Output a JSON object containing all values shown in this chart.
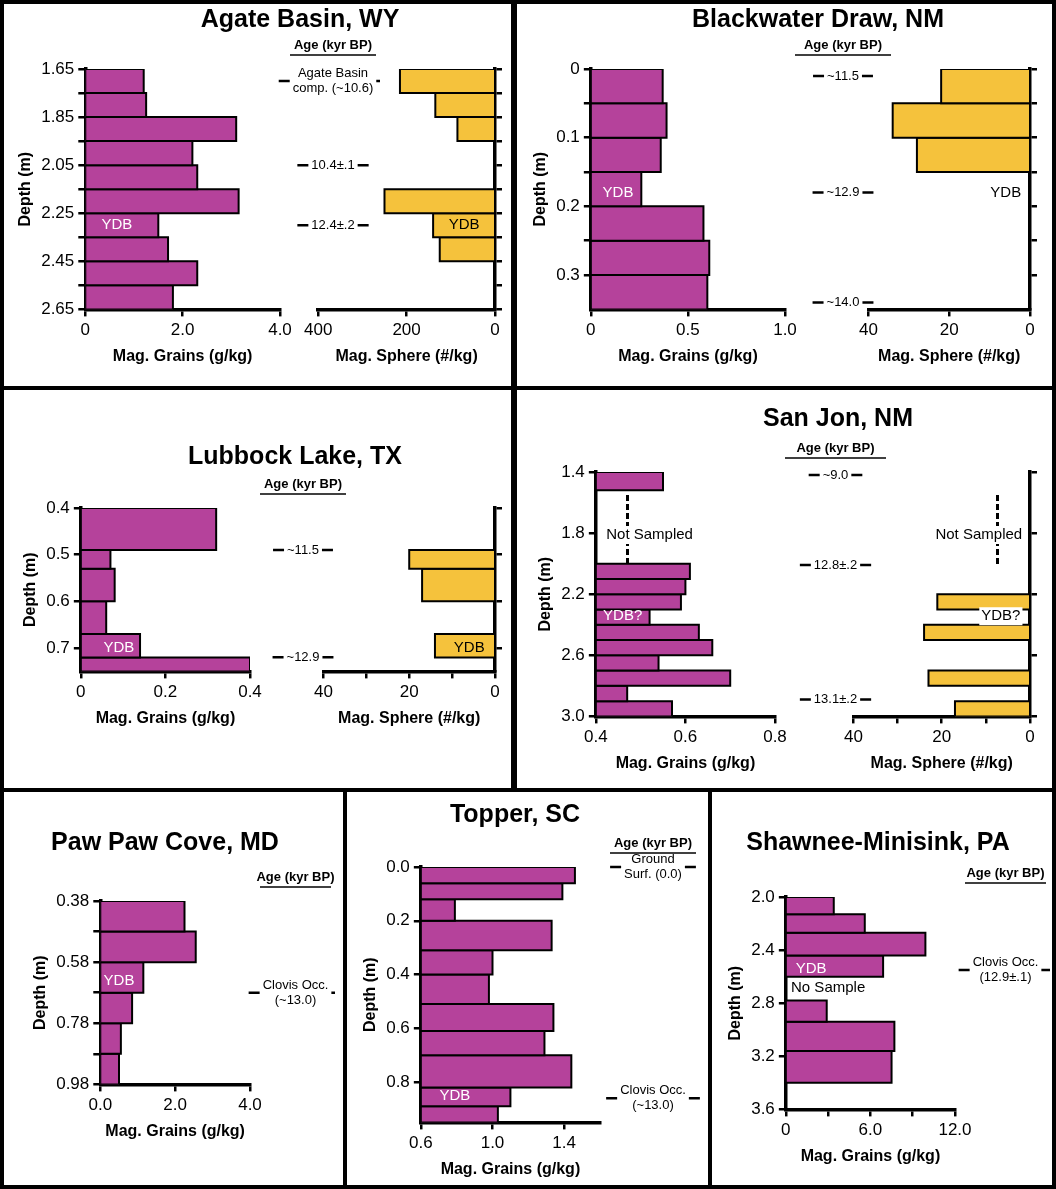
{
  "chart_data": [
    {
      "type": "histogram",
      "orientation": "horizontal",
      "title": "Agate Basin, WY",
      "xlabel": "Mag. Grains (g/kg)",
      "ylabel": "Depth (m)",
      "color": "#b5429b",
      "bins": [
        1.65,
        1.75,
        1.85,
        1.95,
        2.05,
        2.15,
        2.25,
        2.35,
        2.45,
        2.55,
        2.65
      ],
      "values": [
        1.2,
        1.25,
        3.1,
        2.2,
        2.3,
        3.15,
        1.5,
        1.7,
        2.3,
        1.8
      ],
      "xlim": [
        0,
        4
      ],
      "xticks": [
        0,
        {
          "value": 2,
          "label": "2.0"
        },
        {
          "value": 4,
          "label": "4.0"
        }
      ],
      "ylim": [
        2.65,
        1.65
      ],
      "yticks": [
        1.65,
        {
          "value": 1.75,
          "label": null
        },
        1.85,
        {
          "value": 1.95,
          "label": null
        },
        2.05,
        {
          "value": 2.15,
          "label": null
        },
        2.25,
        {
          "value": 2.35,
          "label": null
        },
        2.45,
        {
          "value": 2.55,
          "label": null
        },
        2.65
      ],
      "annotations": [
        "Age (kyr BP)",
        "Agate Basin comp. (~10.6)",
        "10.4±.1",
        "12.4±.2",
        "YDB"
      ]
    },
    {
      "type": "histogram",
      "orientation": "horizontal",
      "xlabel": "Mag. Sphere (#/kg)",
      "color": "#f5c23c",
      "bins": [
        1.65,
        1.75,
        1.85,
        1.95,
        2.15,
        2.25,
        2.35,
        2.45
      ],
      "values": [
        215,
        135,
        85,
        null,
        250,
        140,
        125
      ],
      "xlim": [
        400,
        0
      ],
      "xticks": [
        400,
        200,
        0
      ],
      "ylim": [
        2.65,
        1.65
      ],
      "yticks": [
        1.65,
        1.75,
        1.85,
        1.95,
        2.05,
        2.15,
        2.25,
        2.35,
        2.45,
        2.55,
        2.65
      ],
      "tick_labels": "x",
      "annotations": [
        "YDB"
      ]
    },
    {
      "type": "histogram",
      "orientation": "horizontal",
      "title": "Blackwater Draw, NM",
      "xlabel": "Mag. Grains (g/kg)",
      "ylabel": "Depth (m)",
      "color": "#b5429b",
      "bins": [
        0,
        0.05,
        0.1,
        0.15,
        0.2,
        0.25,
        0.3,
        0.35
      ],
      "values": [
        0.37,
        0.39,
        0.36,
        0.26,
        0.58,
        0.61,
        0.6
      ],
      "xlim": [
        0,
        1
      ],
      "xticks": [
        0,
        0.5,
        {
          "value": 1,
          "label": "1.0"
        }
      ],
      "ylim": [
        0.35,
        0
      ],
      "yticks": [
        0,
        {
          "value": 0.05,
          "label": null
        },
        0.1,
        {
          "value": 0.15,
          "label": null
        },
        0.2,
        {
          "value": 0.25,
          "label": null
        },
        0.3
      ],
      "annotations": [
        "Age (kyr BP)",
        "~11.5",
        "~12.9",
        "~14.0",
        "YDB"
      ]
    },
    {
      "type": "histogram",
      "orientation": "horizontal",
      "xlabel": "Mag. Sphere (#/kg)",
      "color": "#f5c23c",
      "bins": [
        0,
        0.05,
        0.1,
        0.15
      ],
      "values": [
        22,
        34,
        28
      ],
      "xlim": [
        40,
        0
      ],
      "xticks": [
        40,
        20,
        0
      ],
      "ylim": [
        0.35,
        0
      ],
      "yticks": [
        0,
        0.05,
        0.1,
        0.15,
        0.2,
        0.25,
        0.3
      ],
      "tick_labels": "x",
      "annotations": [
        "YDB"
      ]
    },
    {
      "type": "histogram",
      "orientation": "horizontal",
      "title": "Lubbock Lake, TX",
      "xlabel": "Mag. Grains (g/kg)",
      "ylabel": "Depth (m)",
      "color": "#b5429b",
      "bins": [
        0.4,
        0.49,
        0.53,
        0.6,
        0.67,
        0.72,
        0.75
      ],
      "values": [
        0.32,
        0.07,
        0.08,
        0.06,
        0.14,
        0.4
      ],
      "xlim": [
        0,
        0.4
      ],
      "xticks": [
        0,
        0.2,
        0.4
      ],
      "ylim": [
        0.75,
        0.4
      ],
      "yticks": [
        0.4,
        0.5,
        0.6,
        0.7
      ],
      "annotations": [
        "Age (kyr BP)",
        "~11.5",
        "~12.9",
        "YDB"
      ]
    },
    {
      "type": "histogram",
      "orientation": "horizontal",
      "xlabel": "Mag. Sphere (#/kg)",
      "color": "#f5c23c",
      "bins": [
        0.49,
        0.53,
        0.6,
        0.67,
        0.72
      ],
      "values": [
        20,
        17,
        null,
        14
      ],
      "xlim": [
        40,
        0
      ],
      "xticks": [
        40,
        {
          "value": 30,
          "label": null
        },
        20,
        {
          "value": 10,
          "label": null
        },
        0
      ],
      "ylim": [
        0.75,
        0.4
      ],
      "yticks": [
        0.4,
        0.5,
        0.6,
        0.7
      ],
      "tick_labels": "x",
      "annotations": [
        "YDB"
      ]
    },
    {
      "type": "histogram",
      "orientation": "horizontal",
      "title": "San Jon, NM",
      "xlabel": "Mag. Grains (g/kg)",
      "ylabel": "Depth (m)",
      "color": "#b5429b",
      "bins": [
        1.4,
        1.52,
        2.0,
        2.1,
        2.2,
        2.3,
        2.4,
        2.5,
        2.6,
        2.7,
        2.8,
        2.9,
        3.0
      ],
      "values": [
        0.55,
        null,
        0.61,
        0.6,
        0.59,
        0.52,
        0.63,
        0.66,
        0.54,
        0.7,
        0.47,
        0.57
      ],
      "xlim": [
        0.4,
        0.8
      ],
      "xticks": [
        0.4,
        0.6,
        0.8
      ],
      "ylim": [
        3.0,
        1.4
      ],
      "yticks": [
        1.4,
        1.8,
        2.2,
        2.6,
        {
          "value": 3.0,
          "label": "3.0"
        }
      ],
      "annotations": [
        "Age (kyr BP)",
        "~9.0",
        "12.8±.2",
        "13.1±.2",
        "Not Sampled",
        "YDB?"
      ]
    },
    {
      "type": "histogram",
      "orientation": "horizontal",
      "xlabel": "Mag. Sphere (#/kg)",
      "color": "#f5c23c",
      "bins": [
        2.2,
        2.3,
        2.4,
        2.5,
        2.7,
        2.8,
        2.9,
        3.0
      ],
      "values": [
        21,
        null,
        24,
        null,
        23,
        null,
        17
      ],
      "xlim": [
        40,
        0
      ],
      "xticks": [
        40,
        {
          "value": 30,
          "label": null
        },
        20,
        {
          "value": 10,
          "label": null
        },
        0
      ],
      "ylim": [
        3.0,
        1.4
      ],
      "yticks": [
        1.4,
        1.8,
        2.2,
        2.6,
        3
      ],
      "tick_labels": "x",
      "annotations": [
        "Not Sampled",
        "YDB?"
      ]
    },
    {
      "type": "histogram",
      "orientation": "horizontal",
      "title": "Paw Paw Cove, MD",
      "xlabel": "Mag. Grains (g/kg)",
      "ylabel": "Depth (m)",
      "color": "#b5429b",
      "bins": [
        0.38,
        0.48,
        0.58,
        0.68,
        0.78,
        0.88,
        0.98
      ],
      "values": [
        2.25,
        2.55,
        1.15,
        0.85,
        0.55,
        0.5
      ],
      "xlim": [
        0,
        4
      ],
      "xticks": [
        {
          "value": 0,
          "label": "0.0"
        },
        {
          "value": 2,
          "label": "2.0"
        },
        {
          "value": 4,
          "label": "4.0"
        }
      ],
      "ylim": [
        0.98,
        0.38
      ],
      "yticks": [
        0.38,
        {
          "value": 0.48,
          "label": null
        },
        0.58,
        {
          "value": 0.68,
          "label": null
        },
        0.78,
        {
          "value": 0.88,
          "label": null
        },
        0.98
      ],
      "annotations": [
        "Age (kyr BP)",
        "Clovis Occ. (~13.0)",
        "YDB"
      ]
    },
    {
      "type": "histogram",
      "orientation": "horizontal",
      "title": "Topper, SC",
      "xlabel": "Mag. Grains (g/kg)",
      "ylabel": "Depth (m)",
      "color": "#b5429b",
      "bins": [
        0,
        0.06,
        0.12,
        0.2,
        0.31,
        0.4,
        0.51,
        0.61,
        0.7,
        0.82,
        0.89,
        0.95
      ],
      "values": [
        1.46,
        1.39,
        0.79,
        1.33,
        1.0,
        0.98,
        1.34,
        1.29,
        1.44,
        1.1,
        1.03
      ],
      "xlim": [
        0.6,
        1.6
      ],
      "xticks": [
        0.6,
        {
          "value": 1,
          "label": "1.0"
        },
        1.4
      ],
      "ylim": [
        0.95,
        0
      ],
      "yticks": [
        {
          "value": 0,
          "label": "0.0"
        },
        0.2,
        0.4,
        0.6,
        0.8
      ],
      "annotations": [
        "Age (kyr BP)",
        "Ground Surf. (0.0)",
        "Clovis Occ. (~13.0)",
        "YDB"
      ]
    },
    {
      "type": "histogram",
      "orientation": "horizontal",
      "title": "Shawnee-Minisink, PA",
      "xlabel": "Mag. Grains (g/kg)",
      "ylabel": "Depth (m)",
      "color": "#b5429b",
      "bins": [
        2.0,
        2.13,
        2.27,
        2.44,
        2.6,
        2.78,
        2.94,
        3.16,
        3.4
      ],
      "values": [
        3.4,
        5.6,
        9.9,
        6.9,
        null,
        2.9,
        7.7,
        7.5
      ],
      "xlim": [
        0,
        12
      ],
      "xticks": [
        0,
        {
          "value": 3,
          "label": null
        },
        {
          "value": 6,
          "label": "6.0"
        },
        {
          "value": 9,
          "label": null
        },
        {
          "value": 12,
          "label": "12.0"
        }
      ],
      "ylim": [
        3.6,
        2.0
      ],
      "yticks": [
        {
          "value": 2.0,
          "label": "2.0"
        },
        2.4,
        2.8,
        3.2,
        3.6
      ],
      "annotations": [
        "Age (kyr BP)",
        "Clovis Occ. (12.9±.1)",
        "YDB",
        "No Sample"
      ]
    }
  ]
}
